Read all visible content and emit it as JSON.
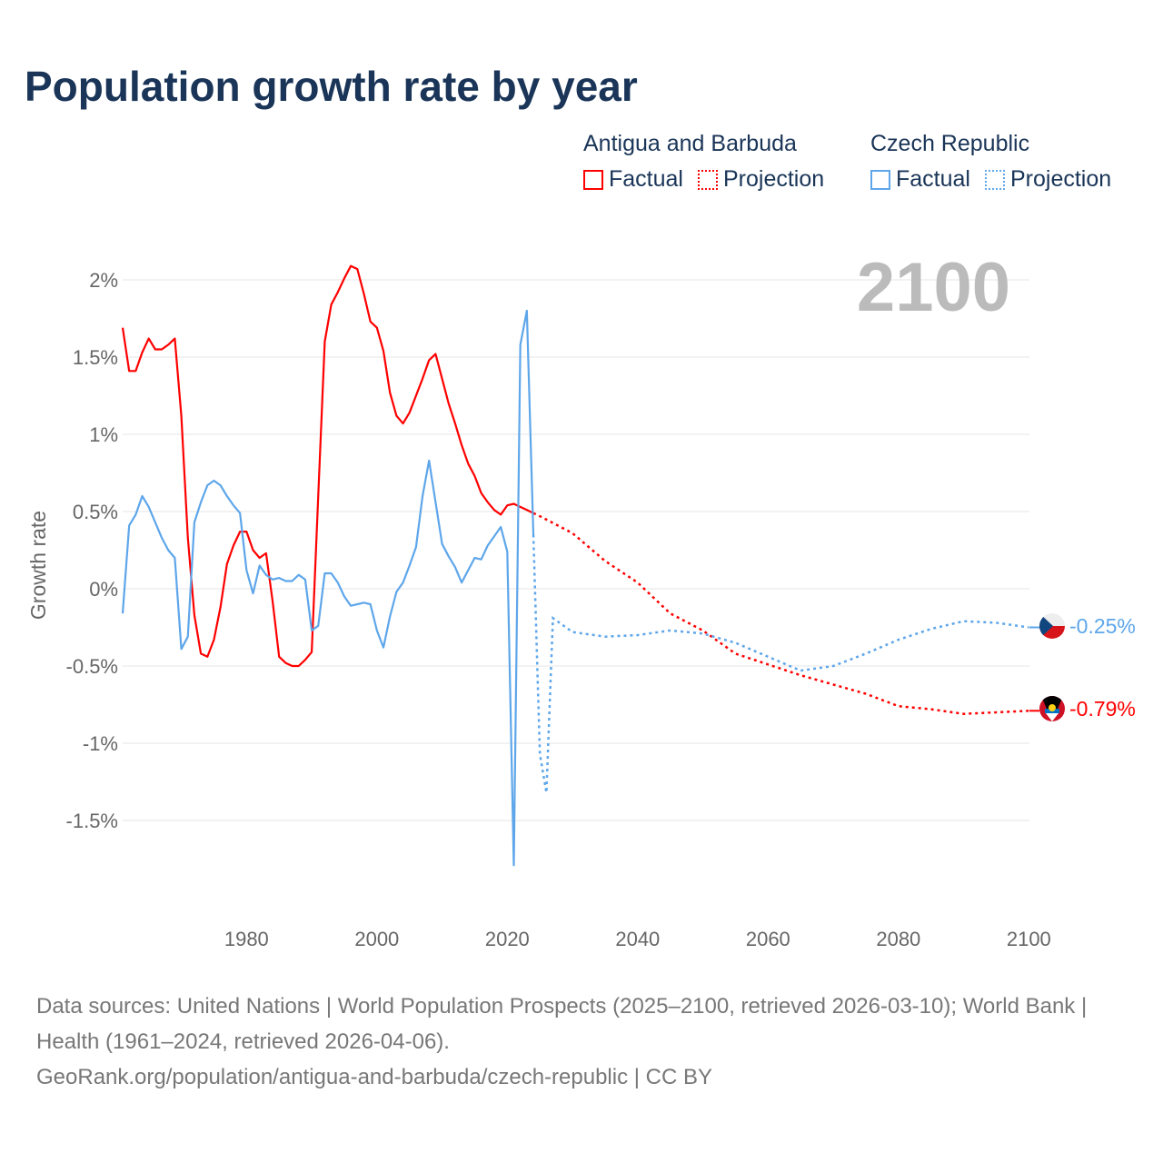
{
  "title": "Population growth rate by year",
  "legend": [
    {
      "name": "Antigua and Barbuda",
      "factual": "Factual",
      "projection": "Projection",
      "color": "#ff0000"
    },
    {
      "name": "Czech Republic",
      "factual": "Factual",
      "projection": "Projection",
      "color": "#5ea6ea"
    }
  ],
  "year_label": "2100",
  "end_labels": {
    "czech": "-0.25%",
    "antigua": "-0.79%"
  },
  "footer": {
    "line1": "Data sources: United Nations | World Population Prospects (2025–2100, retrieved 2026-03-10); World Bank | Health (1961–2024, retrieved 2026-04-06).",
    "line2": "GeoRank.org/population/antigua-and-barbuda/czech-republic | CC BY"
  },
  "chart_data": {
    "type": "line",
    "title": "Population growth rate by year",
    "xlabel": "",
    "ylabel": "Growth rate",
    "xlim": [
      1961,
      2100
    ],
    "ylim": [
      -1.95,
      2.1
    ],
    "x_ticks": [
      1980,
      2000,
      2020,
      2040,
      2060,
      2080,
      2100
    ],
    "y_ticks": [
      {
        "v": 2,
        "l": "2%"
      },
      {
        "v": 1.5,
        "l": "1.5%"
      },
      {
        "v": 1,
        "l": "1%"
      },
      {
        "v": 0.5,
        "l": "0.5%"
      },
      {
        "v": 0,
        "l": "0%"
      },
      {
        "v": -0.5,
        "l": "-0.5%"
      },
      {
        "v": -1,
        "l": "-1%"
      },
      {
        "v": -1.5,
        "l": "-1.5%"
      }
    ],
    "grid": true,
    "series": [
      {
        "name": "Antigua and Barbuda",
        "color": "#ff0000",
        "factual": {
          "start": 1961,
          "values": [
            1.69,
            1.41,
            1.41,
            1.53,
            1.62,
            1.55,
            1.55,
            1.58,
            1.62,
            1.12,
            0.33,
            -0.17,
            -0.42,
            -0.44,
            -0.33,
            -0.12,
            0.16,
            0.28,
            0.37,
            0.37,
            0.25,
            0.2,
            0.23,
            -0.08,
            -0.44,
            -0.48,
            -0.5,
            -0.5,
            -0.46,
            -0.41,
            0.6,
            1.6,
            1.84,
            1.92,
            2.01,
            2.09,
            2.07,
            1.91,
            1.73,
            1.69,
            1.54,
            1.27,
            1.12,
            1.07,
            1.14,
            1.25,
            1.36,
            1.48,
            1.52,
            1.36,
            1.2,
            1.07,
            0.93,
            0.81,
            0.73,
            0.62,
            0.56,
            0.51,
            0.48,
            0.54,
            0.55,
            0.53,
            0.51,
            0.49
          ]
        },
        "projection": {
          "x": [
            2024,
            2025,
            2030,
            2035,
            2040,
            2045,
            2050,
            2055,
            2060,
            2065,
            2070,
            2075,
            2080,
            2085,
            2090,
            2095,
            2100
          ],
          "values": [
            0.49,
            0.47,
            0.36,
            0.18,
            0.04,
            -0.16,
            -0.27,
            -0.42,
            -0.49,
            -0.56,
            -0.62,
            -0.68,
            -0.76,
            -0.78,
            -0.81,
            -0.8,
            -0.79
          ]
        }
      },
      {
        "name": "Czech Republic",
        "color": "#5ea6ea",
        "factual": {
          "start": 1961,
          "values": [
            -0.16,
            0.41,
            0.48,
            0.6,
            0.53,
            0.43,
            0.33,
            0.25,
            0.2,
            -0.39,
            -0.31,
            0.43,
            0.56,
            0.67,
            0.7,
            0.67,
            0.6,
            0.54,
            0.49,
            0.12,
            -0.03,
            0.15,
            0.09,
            0.06,
            0.07,
            0.05,
            0.05,
            0.09,
            0.06,
            -0.27,
            -0.24,
            0.1,
            0.1,
            0.04,
            -0.05,
            -0.11,
            -0.1,
            -0.09,
            -0.1,
            -0.27,
            -0.38,
            -0.18,
            -0.02,
            0.04,
            0.15,
            0.27,
            0.6,
            0.83,
            0.56,
            0.29,
            0.21,
            0.14,
            0.04,
            0.12,
            0.2,
            0.19,
            0.28,
            0.34,
            0.4,
            0.24,
            -1.79,
            1.58,
            1.8,
            0.35
          ]
        },
        "projection": {
          "x": [
            2024,
            2025,
            2026,
            2027,
            2030,
            2035,
            2040,
            2045,
            2050,
            2055,
            2060,
            2065,
            2070,
            2075,
            2080,
            2085,
            2090,
            2095,
            2100
          ],
          "values": [
            0.35,
            -1.07,
            -1.32,
            -0.19,
            -0.28,
            -0.31,
            -0.3,
            -0.27,
            -0.29,
            -0.35,
            -0.44,
            -0.53,
            -0.5,
            -0.42,
            -0.33,
            -0.26,
            -0.21,
            -0.22,
            -0.25
          ]
        }
      }
    ]
  }
}
